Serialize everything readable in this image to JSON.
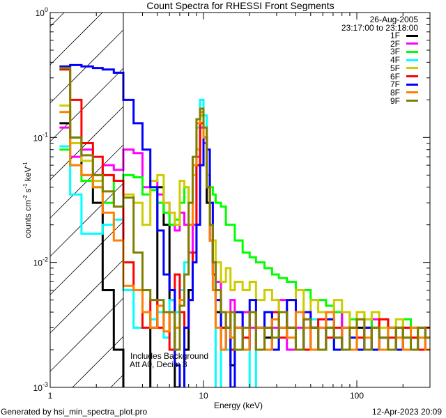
{
  "chart_data": {
    "type": "line",
    "title": "Count Spectra for RHESSI Front Segments",
    "xlabel": "Energy (keV)",
    "ylabel": "counts cm-2 s-1 keV-1",
    "xscale": "log",
    "yscale": "log",
    "xlim": [
      1,
      300
    ],
    "ylim": [
      0.001,
      1
    ],
    "x_tick_labels": [
      "1",
      "10",
      "100"
    ],
    "y_tick_labels": [
      {
        "base": "10",
        "exp": "0"
      },
      {
        "base": "10",
        "exp": "-1"
      },
      {
        "base": "10",
        "exp": "-2"
      },
      {
        "base": "10",
        "exp": "-3"
      }
    ],
    "date": "26-Aug-2005",
    "time_range": "23:17:00 to 23:18:00",
    "annotations": [
      "Includes Background",
      "Att A0, Decim 3"
    ],
    "shaded_region_keV": [
      1,
      3
    ],
    "legend_position": "top-right",
    "energy_bin_edges": [
      1.15,
      1.35,
      1.6,
      1.9,
      2.2,
      2.6,
      3.0,
      3.5,
      4.0,
      4.5,
      5,
      5.5,
      6,
      6.5,
      7,
      7.5,
      8,
      8.5,
      9,
      9.5,
      10,
      10.5,
      11,
      11.5,
      12,
      13,
      14,
      15,
      16,
      18,
      20,
      22,
      25,
      28,
      31,
      35,
      40,
      45,
      50,
      56,
      63,
      71,
      80,
      90,
      100,
      112,
      125,
      140,
      160,
      180,
      200,
      225,
      250,
      280,
      300
    ],
    "series": [
      {
        "name": "1F",
        "color": "#000000",
        "values": [
          0.13,
          0.1,
          0.05,
          0.03,
          0.006,
          0.002,
          0.0006,
          0.0008,
          0.0005,
          0.003,
          0.04,
          0.02,
          0.005,
          0.001,
          0.0004,
          0.002,
          0.006,
          0.02,
          0.06,
          0.15,
          0.1,
          0.03,
          0.015,
          0.008,
          0.004,
          0.002,
          0.003,
          0.0015,
          0.003,
          0.002,
          0.004,
          0.003,
          0.0025,
          0.002,
          0.004,
          0.003,
          0.002,
          0.0035,
          0.003,
          0.002,
          0.003,
          0.0025,
          0.004,
          0.002,
          0.003,
          0.002,
          0.003,
          0.0025,
          0.002,
          0.003,
          0.002,
          0.0025,
          0.002,
          0.002
        ]
      },
      {
        "name": "2F",
        "color": "#ff00ff",
        "values": [
          0.12,
          0.07,
          0.08,
          0.05,
          0.06,
          0.055,
          0.08,
          0.075,
          0.04,
          0.045,
          0.035,
          0.03,
          0.02,
          0.018,
          0.025,
          0.02,
          0.012,
          0.02,
          0.07,
          0.12,
          0.09,
          0.04,
          0.02,
          0.01,
          0.007,
          0.004,
          0.003,
          0.005,
          0.002,
          0.004,
          0.003,
          0.002,
          0.004,
          0.003,
          0.005,
          0.002,
          0.003,
          0.004,
          0.002,
          0.003,
          0.0035,
          0.002,
          0.004,
          0.003,
          0.002,
          0.003,
          0.0035,
          0.002,
          0.003,
          0.0025,
          0.002,
          0.003,
          0.002,
          0.0025
        ]
      },
      {
        "name": "3F",
        "color": "#00ff00",
        "values": [
          0.08,
          0.06,
          0.045,
          0.04,
          0.03,
          0.045,
          0.05,
          0.048,
          0.035,
          0.038,
          0.03,
          0.025,
          0.02,
          0.022,
          0.03,
          0.04,
          0.03,
          0.05,
          0.08,
          0.13,
          0.1,
          0.05,
          0.04,
          0.035,
          0.03,
          0.028,
          0.02,
          0.02,
          0.015,
          0.012,
          0.011,
          0.01,
          0.009,
          0.008,
          0.0075,
          0.007,
          0.006,
          0.006,
          0.005,
          0.005,
          0.0045,
          0.004,
          0.004,
          0.0035,
          0.004,
          0.0035,
          0.003,
          0.0035,
          0.003,
          0.003,
          0.0035,
          0.003,
          0.0025,
          0.003
        ]
      },
      {
        "name": "4F",
        "color": "#00ffff",
        "values": [
          0.085,
          0.035,
          0.017,
          0.017,
          0.02,
          0.022,
          0.006,
          0.003,
          0.004,
          0.0035,
          0.004,
          0.0025,
          0.005,
          0.004,
          0.006,
          0.01,
          0.02,
          0.05,
          0.12,
          0.2,
          0.15,
          0.05,
          0.02,
          0.008,
          0.0008,
          0.003,
          0.002,
          0.004,
          0.003,
          0.002,
          0.0008,
          0.003,
          0.004,
          0.002,
          0.003,
          0.0025,
          0.002,
          0.003,
          0.0035,
          0.002,
          0.003,
          0.002,
          0.003,
          0.0025,
          0.002,
          0.003,
          0.002,
          0.0025,
          0.003,
          0.002,
          0.003,
          0.002,
          0.0025,
          0.002
        ]
      },
      {
        "name": "5F",
        "color": "#cccc00",
        "values": [
          0.18,
          0.09,
          0.065,
          0.045,
          0.05,
          0.045,
          0.035,
          0.03,
          0.02,
          0.045,
          0.05,
          0.03,
          0.025,
          0.02,
          0.045,
          0.04,
          0.03,
          0.05,
          0.08,
          0.15,
          0.12,
          0.05,
          0.03,
          0.015,
          0.01,
          0.007,
          0.009,
          0.006,
          0.007,
          0.006,
          0.007,
          0.005,
          0.006,
          0.005,
          0.004,
          0.005,
          0.006,
          0.004,
          0.005,
          0.004,
          0.004,
          0.005,
          0.004,
          0.003,
          0.004,
          0.0035,
          0.004,
          0.003,
          0.003,
          0.0035,
          0.003,
          0.0025,
          0.003,
          0.003
        ]
      },
      {
        "name": "6F",
        "color": "#ff0000",
        "values": [
          0.35,
          0.2,
          0.09,
          0.07,
          0.05,
          0.045,
          0.01,
          0.006,
          0.003,
          0.005,
          0.003,
          0.004,
          0.002,
          0.008,
          0.004,
          0.003,
          0.005,
          0.012,
          0.06,
          0.13,
          0.1,
          0.04,
          0.015,
          0.008,
          0.005,
          0.003,
          0.004,
          0.002,
          0.003,
          0.0025,
          0.004,
          0.002,
          0.003,
          0.004,
          0.0025,
          0.003,
          0.004,
          0.002,
          0.003,
          0.0035,
          0.0025,
          0.003,
          0.002,
          0.003,
          0.0025,
          0.003,
          0.002,
          0.0035,
          0.0025,
          0.002,
          0.003,
          0.0025,
          0.002,
          0.003
        ]
      },
      {
        "name": "7F",
        "color": "#0000ff",
        "values": [
          0.37,
          0.38,
          0.37,
          0.36,
          0.35,
          0.33,
          0.2,
          0.13,
          0.08,
          0.04,
          0.018,
          0.008,
          0.006,
          0.0015,
          0.0004,
          0.003,
          0.005,
          0.01,
          0.02,
          0.06,
          0.1,
          0.08,
          0.03,
          0.01,
          0.005,
          0.002,
          0.003,
          0.001,
          0.004,
          0.002,
          0.005,
          0.003,
          0.004,
          0.002,
          0.003,
          0.005,
          0.002,
          0.004,
          0.003,
          0.002,
          0.0035,
          0.002,
          0.003,
          0.0025,
          0.002,
          0.003,
          0.002,
          0.0025,
          0.003,
          0.002,
          0.0025,
          0.002,
          0.003,
          0.002
        ]
      },
      {
        "name": "8F",
        "color": "#ff8000",
        "values": [
          0.16,
          0.06,
          0.05,
          0.04,
          0.025,
          0.015,
          0.0065,
          0.006,
          0.004,
          0.003,
          0.0045,
          0.0028,
          0.004,
          0.003,
          0.005,
          0.008,
          0.02,
          0.06,
          0.13,
          0.16,
          0.1,
          0.04,
          0.015,
          0.006,
          0.003,
          0.002,
          0.004,
          0.0025,
          0.003,
          0.002,
          0.004,
          0.003,
          0.002,
          0.0035,
          0.003,
          0.0025,
          0.004,
          0.003,
          0.002,
          0.003,
          0.004,
          0.0025,
          0.003,
          0.002,
          0.0035,
          0.0025,
          0.003,
          0.002,
          0.003,
          0.0025,
          0.002,
          0.003,
          0.0025,
          0.002
        ]
      },
      {
        "name": "9F",
        "color": "#808000",
        "values": [
          0.36,
          0.1,
          0.072,
          0.05,
          0.037,
          0.028,
          0.033,
          0.012,
          0.006,
          0.005,
          0.005,
          0.004,
          0.004,
          0.002,
          0.0045,
          0.008,
          0.03,
          0.07,
          0.14,
          0.17,
          0.12,
          0.04,
          0.02,
          0.01,
          0.006,
          0.004,
          0.003,
          0.004,
          0.002,
          0.003,
          0.004,
          0.002,
          0.003,
          0.0025,
          0.004,
          0.003,
          0.002,
          0.0035,
          0.003,
          0.002,
          0.003,
          0.0025,
          0.002,
          0.003,
          0.0035,
          0.002,
          0.003,
          0.0025,
          0.002,
          0.003,
          0.0025,
          0.002,
          0.003,
          0.0025
        ]
      }
    ]
  },
  "footer": {
    "generated_by": "Generated by hsi_min_spectra_plot.pro",
    "timestamp": "12-Apr-2023 20:09"
  }
}
